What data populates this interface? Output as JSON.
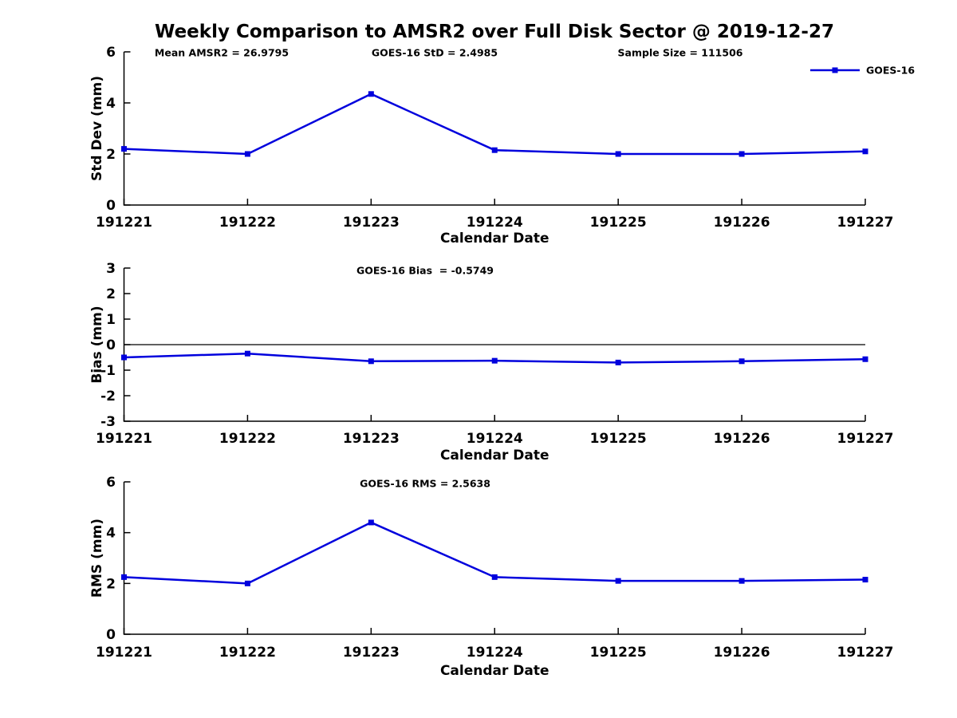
{
  "title": "Weekly Comparison to AMSR2 over Full Disk Sector @ 2019-12-27",
  "colors": {
    "series": "#0000dd",
    "axis": "#000000",
    "text": "#000000",
    "background": "#ffffff"
  },
  "legend": {
    "label": "GOES-16",
    "position": "top-right-outside",
    "visible_on": "first-panel"
  },
  "chart_data": [
    {
      "type": "line",
      "panel": "std-dev",
      "ylabel": "Std Dev (mm)",
      "xlabel": "Calendar Date",
      "ylim": [
        0,
        6
      ],
      "yticks": [
        0,
        2,
        4,
        6
      ],
      "grid": false,
      "zero_line": false,
      "legend": true,
      "marker": "square",
      "categories": [
        "191221",
        "191222",
        "191223",
        "191224",
        "191225",
        "191226",
        "191227"
      ],
      "series": [
        {
          "name": "GOES-16",
          "values": [
            2.2,
            2.0,
            4.35,
            2.15,
            2.0,
            2.0,
            2.1
          ]
        }
      ],
      "annotations": [
        "Mean AMSR2 = 26.9795",
        "GOES-16 StD = 2.4985",
        "Sample Size = 111506"
      ]
    },
    {
      "type": "line",
      "panel": "bias",
      "ylabel": "Bias (mm)",
      "xlabel": "Calendar Date",
      "ylim": [
        -3,
        3
      ],
      "yticks": [
        3,
        2,
        1,
        0,
        -1,
        -2,
        -3
      ],
      "grid": false,
      "zero_line": true,
      "legend": false,
      "marker": "square",
      "categories": [
        "191221",
        "191222",
        "191223",
        "191224",
        "191225",
        "191226",
        "191227"
      ],
      "series": [
        {
          "name": "GOES-16",
          "values": [
            -0.5,
            -0.35,
            -0.65,
            -0.63,
            -0.7,
            -0.65,
            -0.57
          ]
        }
      ],
      "annotations": [
        "GOES-16 Bias  = -0.5749"
      ]
    },
    {
      "type": "line",
      "panel": "rms",
      "ylabel": "RMS (mm)",
      "xlabel": "Calendar Date",
      "ylim": [
        0,
        6
      ],
      "yticks": [
        0,
        2,
        4,
        6
      ],
      "grid": false,
      "zero_line": false,
      "legend": false,
      "marker": "square",
      "categories": [
        "191221",
        "191222",
        "191223",
        "191224",
        "191225",
        "191226",
        "191227"
      ],
      "series": [
        {
          "name": "GOES-16",
          "values": [
            2.25,
            2.0,
            4.4,
            2.25,
            2.1,
            2.1,
            2.15
          ]
        }
      ],
      "annotations": [
        "GOES-16 RMS = 2.5638"
      ]
    }
  ]
}
